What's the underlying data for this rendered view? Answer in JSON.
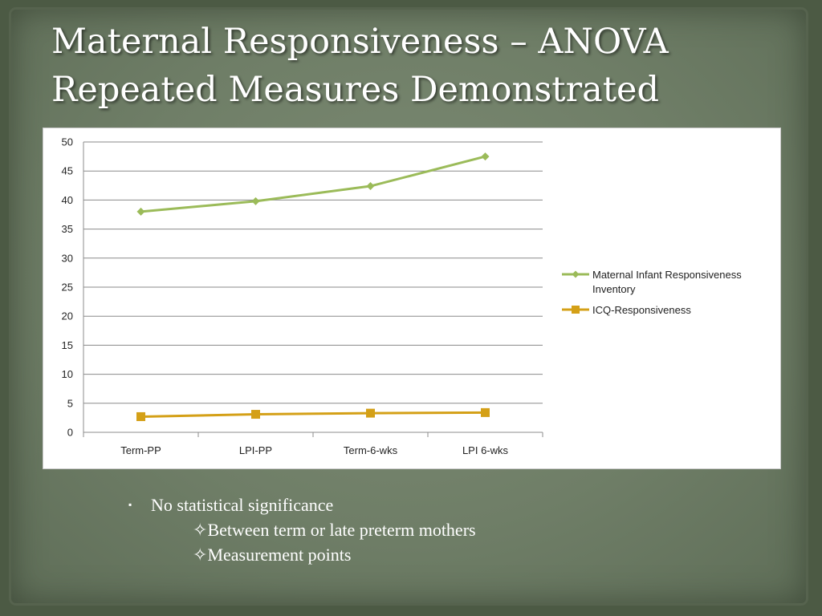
{
  "slide": {
    "title_line1": "Maternal Responsiveness – ANOVA",
    "title_line2": "Repeated Measures Demonstrated"
  },
  "bullets": {
    "marker": "▪",
    "main": "No statistical significance",
    "sub_marker": "✧",
    "sub_items": [
      "Between term or late preterm mothers",
      "Measurement points"
    ]
  },
  "chart_data": {
    "type": "line",
    "categories": [
      "Term-PP",
      "LPI-PP",
      "Term-6-wks",
      "LPI 6-wks"
    ],
    "ylim": [
      0,
      50
    ],
    "yticks": [
      0,
      5,
      10,
      15,
      20,
      25,
      30,
      35,
      40,
      45,
      50
    ],
    "grid": true,
    "legend_position": "right",
    "series": [
      {
        "name": "Maternal Infant Responsiveness Inventory",
        "legend_lines": [
          "Maternal Infant Responsiveness",
          "Inventory"
        ],
        "values": [
          38.0,
          39.8,
          42.4,
          47.5
        ],
        "color": "#9bbb59",
        "marker": "diamond"
      },
      {
        "name": "ICQ-Responsiveness",
        "legend_lines": [
          "ICQ-Responsiveness"
        ],
        "values": [
          2.7,
          3.1,
          3.3,
          3.4
        ],
        "color": "#d4a017",
        "marker": "square"
      }
    ]
  }
}
